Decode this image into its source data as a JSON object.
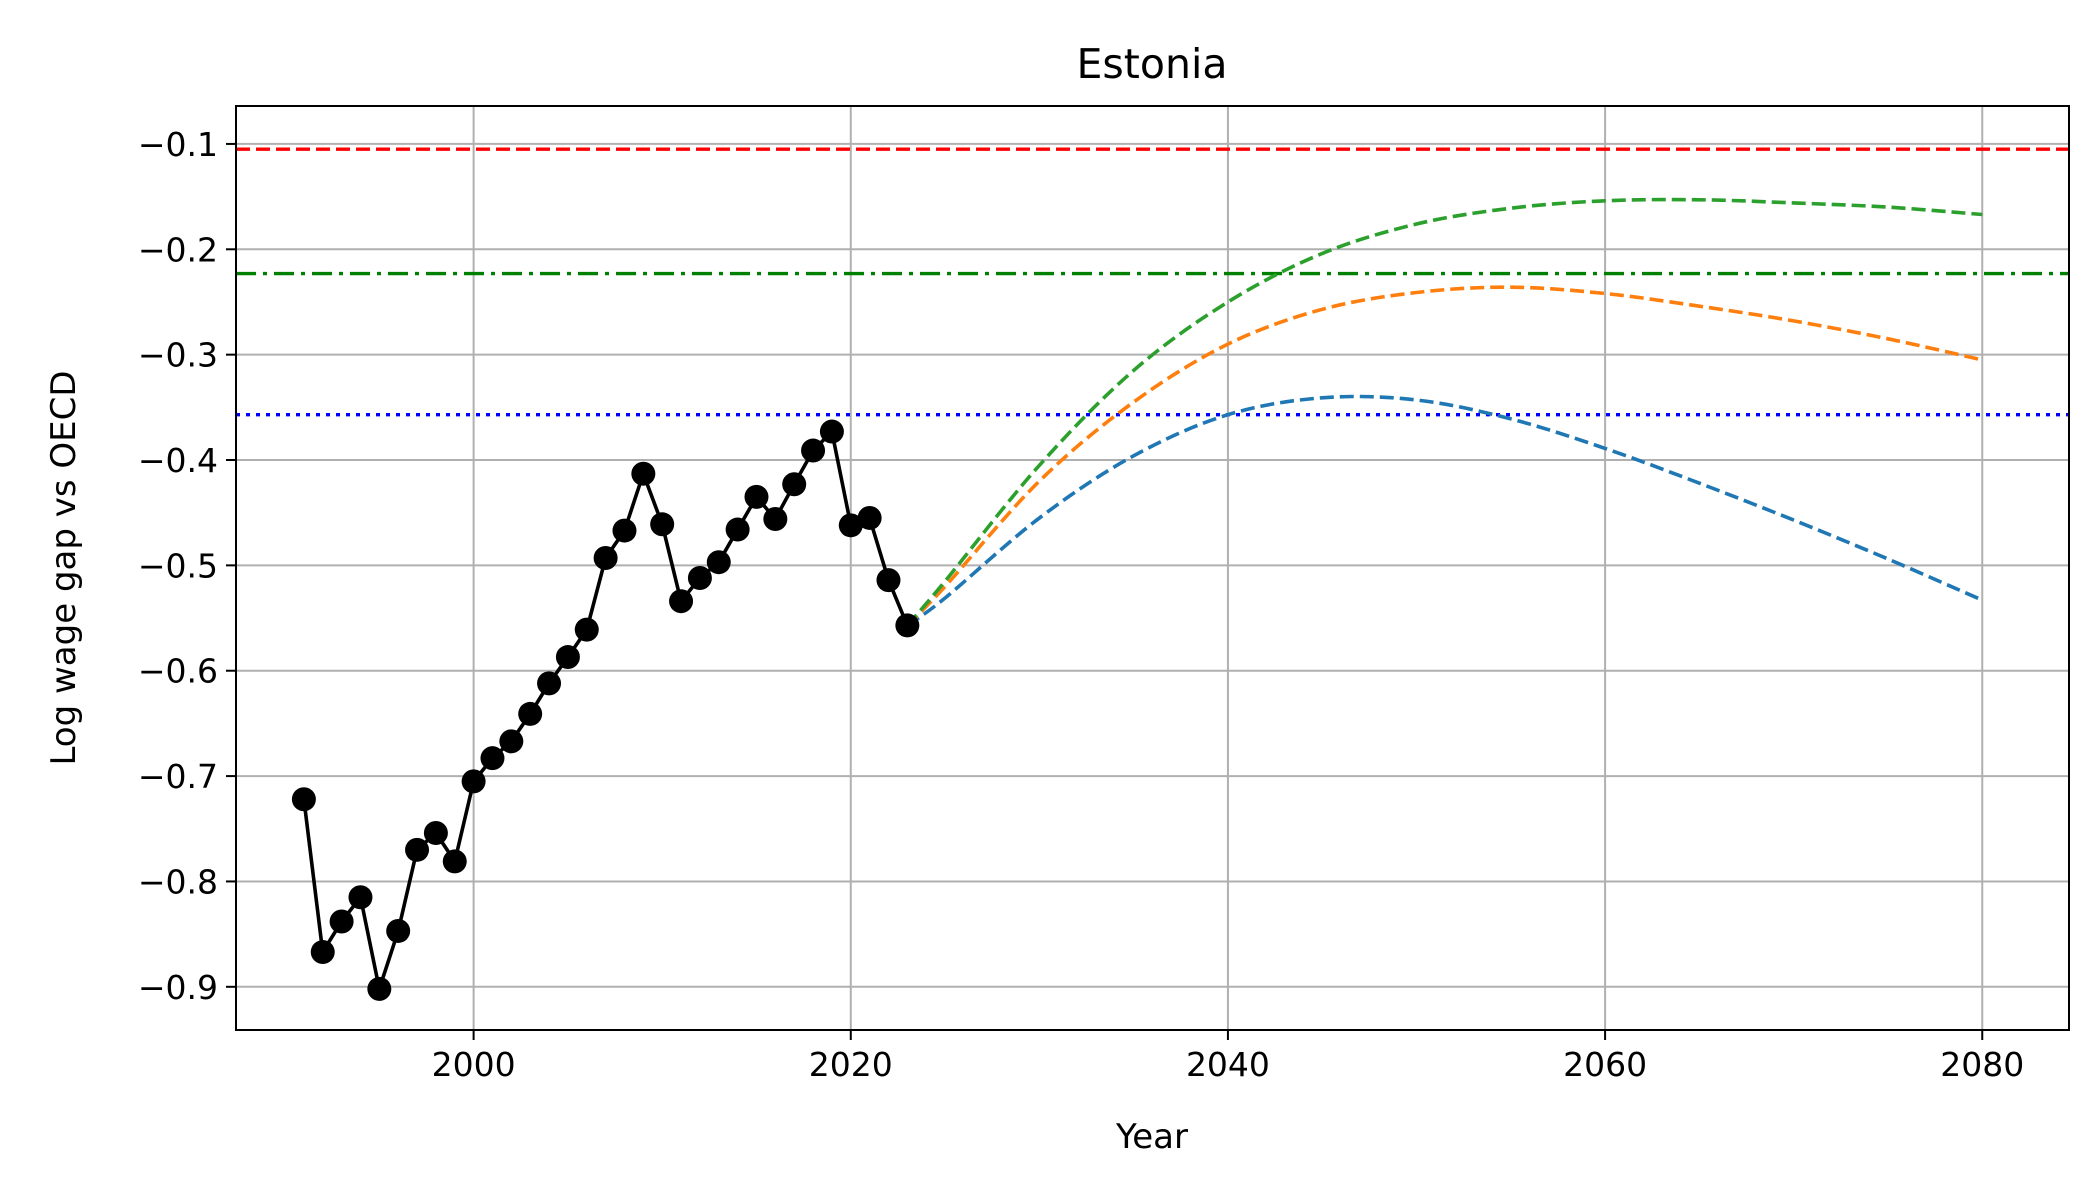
{
  "chart_data": {
    "type": "line",
    "title": "Estonia",
    "xlabel": "Year",
    "ylabel": "Log wage gap vs OECD",
    "xlim": [
      1987.4,
      2084.6
    ],
    "ylim": [
      -0.941,
      -0.064
    ],
    "xticks": [
      2000,
      2020,
      2040,
      2060,
      2080
    ],
    "yticks": [
      -0.1,
      -0.2,
      -0.3,
      -0.4,
      -0.5,
      -0.6,
      -0.7,
      -0.8,
      -0.9
    ],
    "grid": true,
    "historical": {
      "color": "#000000",
      "x": [
        1991,
        1992,
        1993,
        1994,
        1995,
        1996,
        1997,
        1998,
        1999,
        2000,
        2001,
        2002,
        2003,
        2004,
        2005,
        2006,
        2007,
        2008,
        2009,
        2010,
        2011,
        2012,
        2013,
        2014,
        2015,
        2016,
        2017,
        2018,
        2019,
        2020,
        2021,
        2022,
        2023
      ],
      "y": [
        -0.722,
        -0.867,
        -0.838,
        -0.815,
        -0.902,
        -0.847,
        -0.77,
        -0.754,
        -0.781,
        -0.705,
        -0.683,
        -0.667,
        -0.641,
        -0.612,
        -0.587,
        -0.561,
        -0.493,
        -0.467,
        -0.413,
        -0.461,
        -0.534,
        -0.512,
        -0.497,
        -0.466,
        -0.435,
        -0.456,
        -0.423,
        -0.391,
        -0.373,
        -0.462,
        -0.455,
        -0.514,
        -0.557
      ]
    },
    "reference_lines": [
      {
        "y": -0.105,
        "color": "#ff0000",
        "style": "dashed"
      },
      {
        "y": -0.223,
        "color": "#008000",
        "style": "dashdot"
      },
      {
        "y": -0.357,
        "color": "#0000ff",
        "style": "dotted"
      }
    ],
    "series": [
      {
        "color": "#1f77b4",
        "style": "dashed",
        "x": [
          2023,
          2025,
          2030,
          2035,
          2040,
          2045,
          2050,
          2055,
          2060,
          2065,
          2070,
          2075,
          2080
        ],
        "y": [
          -0.557,
          -0.531,
          -0.455,
          -0.396,
          -0.357,
          -0.341,
          -0.343,
          -0.361,
          -0.389,
          -0.422,
          -0.457,
          -0.494,
          -0.533
        ]
      },
      {
        "color": "#ff7f0e",
        "style": "dashed",
        "x": [
          2023,
          2025,
          2030,
          2035,
          2040,
          2045,
          2050,
          2055,
          2060,
          2065,
          2070,
          2075,
          2080
        ],
        "y": [
          -0.557,
          -0.52,
          -0.42,
          -0.345,
          -0.29,
          -0.257,
          -0.241,
          -0.236,
          -0.242,
          -0.254,
          -0.268,
          -0.285,
          -0.305
        ]
      },
      {
        "color": "#2ca02c",
        "style": "dashed",
        "x": [
          2023,
          2025,
          2030,
          2035,
          2040,
          2045,
          2050,
          2055,
          2060,
          2065,
          2070,
          2075,
          2080
        ],
        "y": [
          -0.557,
          -0.515,
          -0.405,
          -0.315,
          -0.25,
          -0.204,
          -0.176,
          -0.161,
          -0.154,
          -0.153,
          -0.156,
          -0.16,
          -0.167
        ]
      }
    ]
  }
}
